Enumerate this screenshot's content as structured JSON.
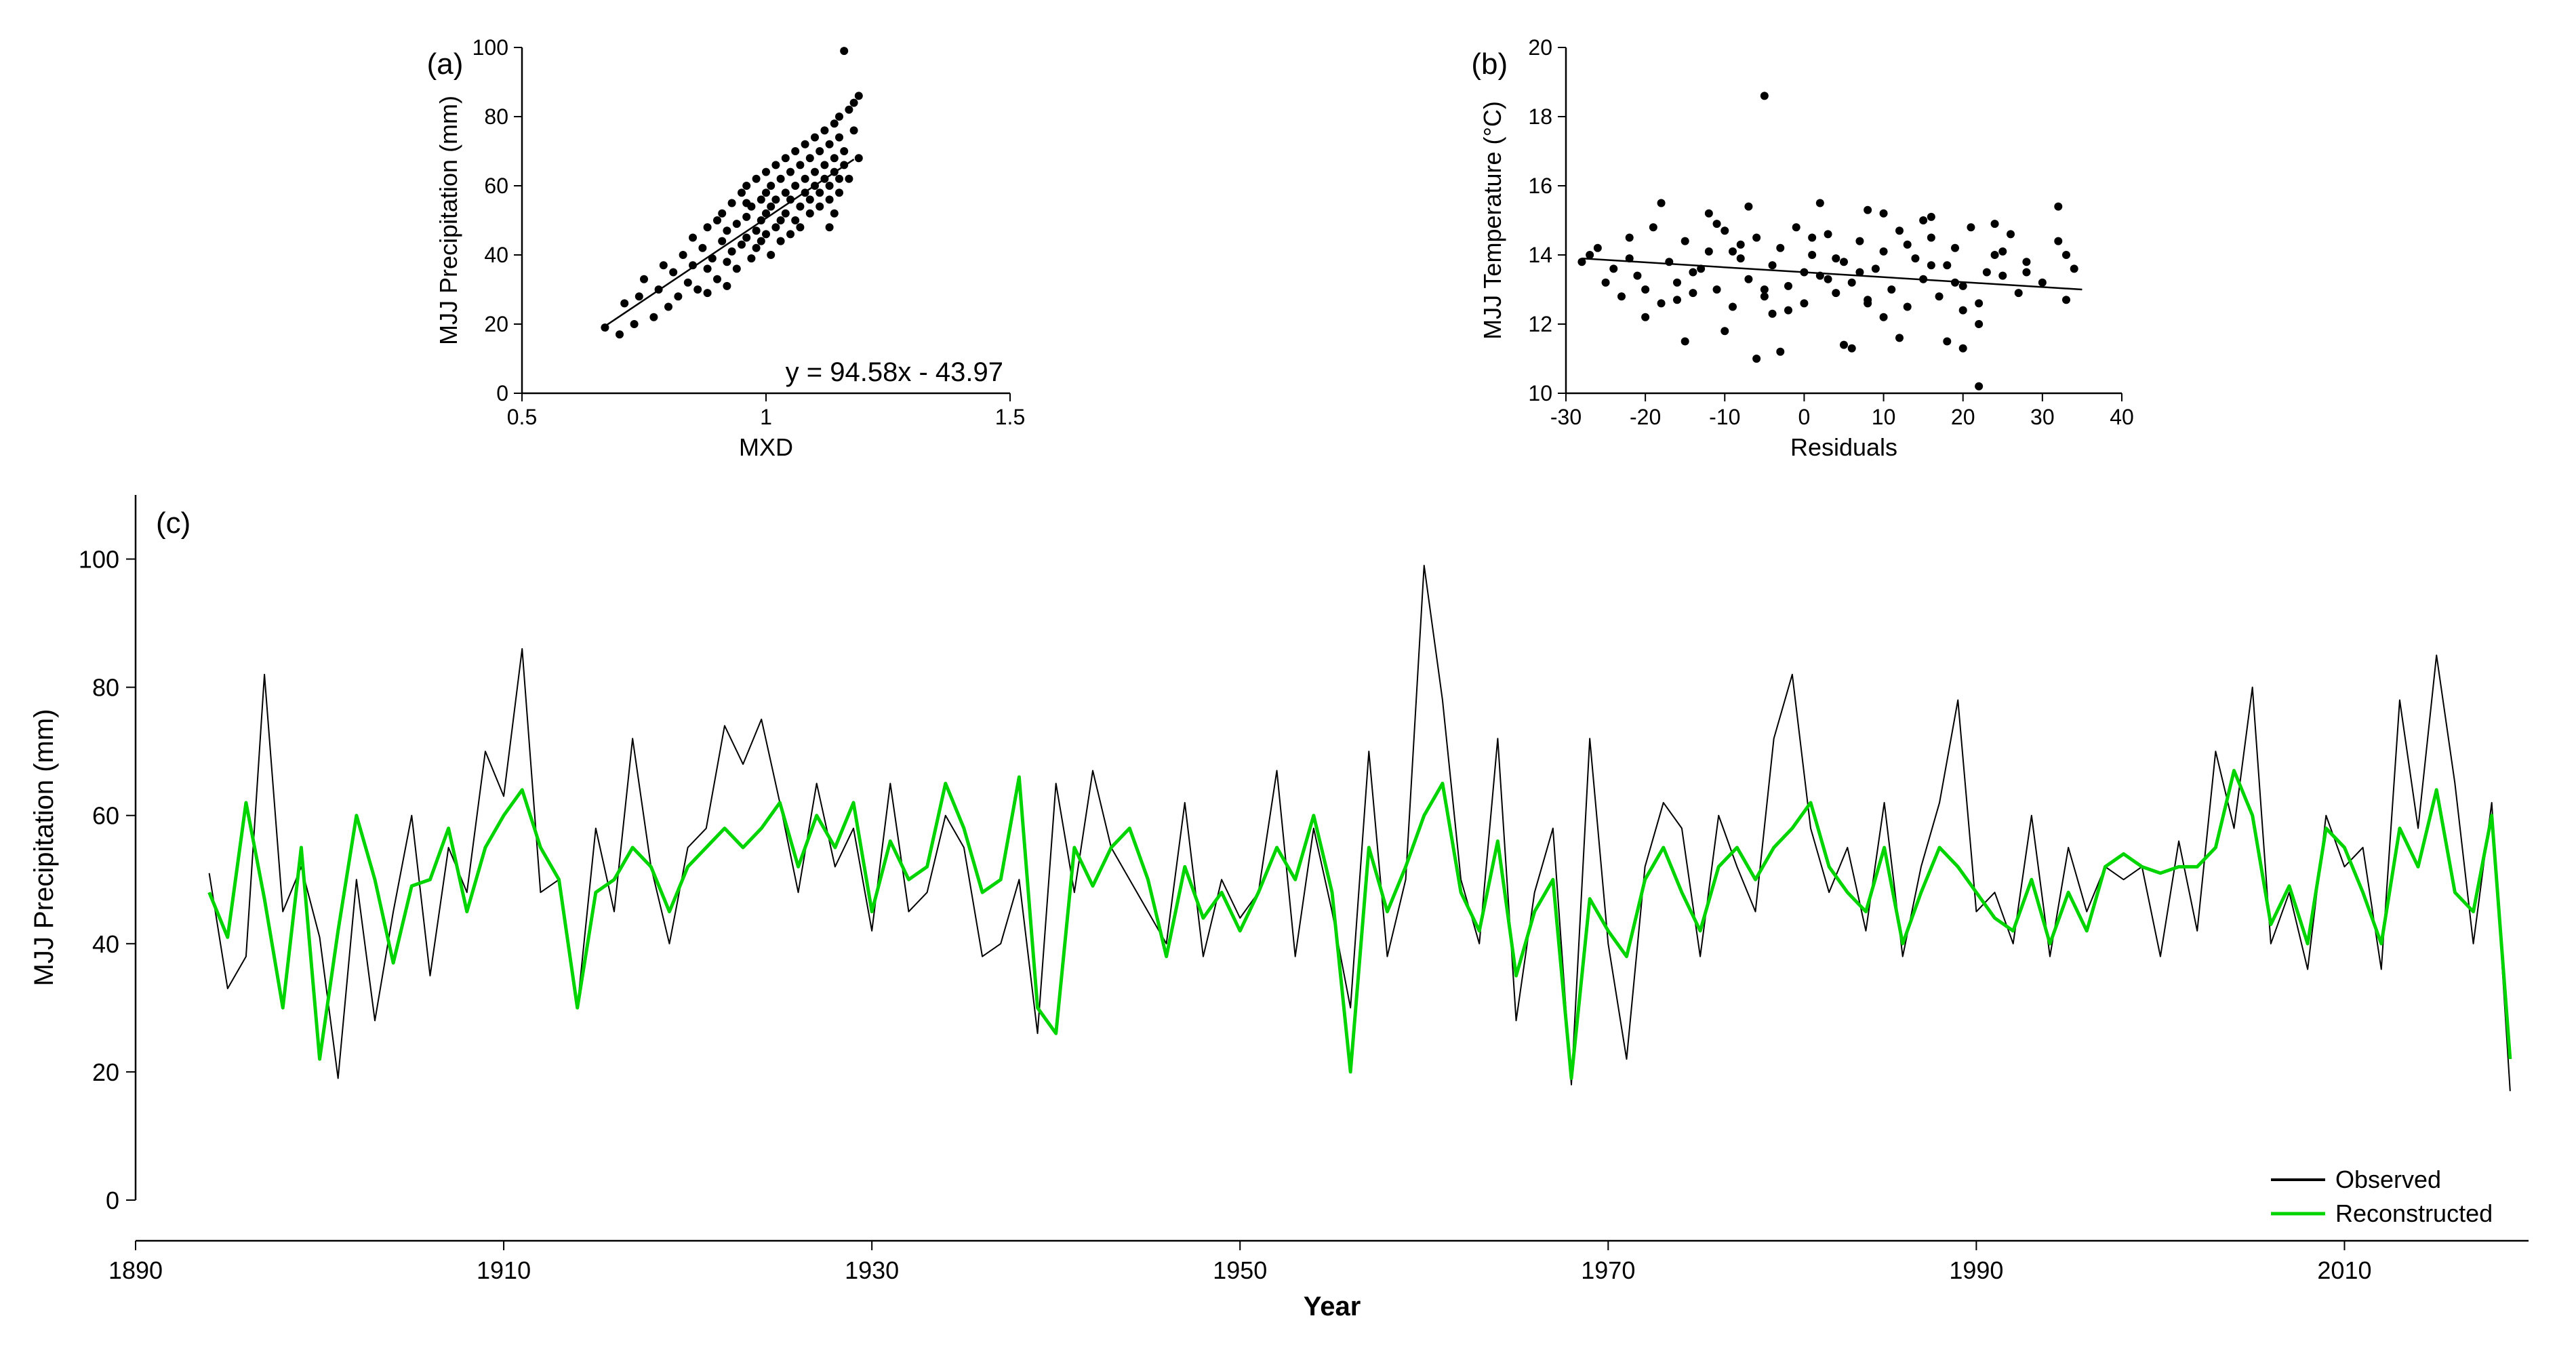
{
  "panelA": {
    "label": "(a)",
    "type": "scatter",
    "xlabel": "MXD",
    "ylabel": "MJJ Precipitation (mm)",
    "xlim": [
      0.5,
      1.5
    ],
    "ylim": [
      0,
      100
    ],
    "xticks": [
      0.5,
      1,
      1.5
    ],
    "yticks": [
      0,
      20,
      40,
      60,
      80,
      100
    ],
    "equation": "y = 94.58x - 43.97",
    "reg_slope": 94.58,
    "reg_intercept": -43.97,
    "reg_x1": 0.67,
    "reg_x2": 1.18,
    "marker_color": "#000000",
    "marker_radius": 6,
    "line_color": "#000000",
    "line_width": 2.5,
    "background_color": "#ffffff",
    "label_fontsize": 36,
    "tick_fontsize": 32,
    "eq_fontsize": 40,
    "points": [
      [
        0.67,
        19
      ],
      [
        0.7,
        17
      ],
      [
        0.71,
        26
      ],
      [
        0.73,
        20
      ],
      [
        0.74,
        28
      ],
      [
        0.75,
        33
      ],
      [
        0.77,
        22
      ],
      [
        0.78,
        30
      ],
      [
        0.79,
        37
      ],
      [
        0.8,
        25
      ],
      [
        0.81,
        35
      ],
      [
        0.82,
        28
      ],
      [
        0.83,
        40
      ],
      [
        0.84,
        32
      ],
      [
        0.85,
        45
      ],
      [
        0.86,
        30
      ],
      [
        0.87,
        42
      ],
      [
        0.88,
        36
      ],
      [
        0.88,
        48
      ],
      [
        0.89,
        39
      ],
      [
        0.9,
        50
      ],
      [
        0.9,
        33
      ],
      [
        0.91,
        44
      ],
      [
        0.91,
        52
      ],
      [
        0.92,
        38
      ],
      [
        0.92,
        47
      ],
      [
        0.93,
        55
      ],
      [
        0.93,
        41
      ],
      [
        0.94,
        49
      ],
      [
        0.94,
        36
      ],
      [
        0.95,
        58
      ],
      [
        0.95,
        43
      ],
      [
        0.96,
        51
      ],
      [
        0.96,
        45
      ],
      [
        0.96,
        60
      ],
      [
        0.97,
        39
      ],
      [
        0.97,
        54
      ],
      [
        0.98,
        47
      ],
      [
        0.98,
        62
      ],
      [
        0.98,
        42
      ],
      [
        0.99,
        56
      ],
      [
        0.99,
        50
      ],
      [
        0.99,
        44
      ],
      [
        1.0,
        64
      ],
      [
        1.0,
        52
      ],
      [
        1.0,
        46
      ],
      [
        1.0,
        58
      ],
      [
        1.01,
        40
      ],
      [
        1.01,
        60
      ],
      [
        1.01,
        54
      ],
      [
        1.02,
        48
      ],
      [
        1.02,
        66
      ],
      [
        1.02,
        56
      ],
      [
        1.03,
        50
      ],
      [
        1.03,
        62
      ],
      [
        1.03,
        44
      ],
      [
        1.04,
        58
      ],
      [
        1.04,
        68
      ],
      [
        1.04,
        52
      ],
      [
        1.05,
        46
      ],
      [
        1.05,
        64
      ],
      [
        1.05,
        56
      ],
      [
        1.06,
        70
      ],
      [
        1.06,
        50
      ],
      [
        1.06,
        60
      ],
      [
        1.07,
        54
      ],
      [
        1.07,
        66
      ],
      [
        1.07,
        48
      ],
      [
        1.08,
        72
      ],
      [
        1.08,
        58
      ],
      [
        1.08,
        62
      ],
      [
        1.09,
        52
      ],
      [
        1.09,
        68
      ],
      [
        1.09,
        56
      ],
      [
        1.1,
        74
      ],
      [
        1.1,
        60
      ],
      [
        1.1,
        64
      ],
      [
        1.11,
        54
      ],
      [
        1.11,
        70
      ],
      [
        1.11,
        58
      ],
      [
        1.12,
        76
      ],
      [
        1.12,
        62
      ],
      [
        1.12,
        66
      ],
      [
        1.13,
        56
      ],
      [
        1.13,
        72
      ],
      [
        1.13,
        60
      ],
      [
        1.14,
        78
      ],
      [
        1.14,
        64
      ],
      [
        1.14,
        68
      ],
      [
        1.15,
        58
      ],
      [
        1.15,
        74
      ],
      [
        1.15,
        80
      ],
      [
        1.16,
        66
      ],
      [
        1.16,
        70
      ],
      [
        1.17,
        82
      ],
      [
        1.17,
        62
      ],
      [
        1.18,
        76
      ],
      [
        1.18,
        84
      ],
      [
        1.19,
        68
      ],
      [
        1.19,
        86
      ],
      [
        1.16,
        99
      ],
      [
        1.15,
        62
      ],
      [
        1.14,
        52
      ],
      [
        1.13,
        48
      ],
      [
        0.85,
        37
      ],
      [
        0.88,
        29
      ],
      [
        0.92,
        31
      ],
      [
        0.96,
        55
      ]
    ]
  },
  "panelB": {
    "label": "(b)",
    "type": "scatter",
    "xlabel": "Residuals",
    "ylabel": "MJJ Temperature (°C)",
    "xlim": [
      -30,
      40
    ],
    "ylim": [
      10,
      20
    ],
    "xticks": [
      -30,
      -20,
      -10,
      0,
      10,
      20,
      30,
      40
    ],
    "yticks": [
      10,
      12,
      14,
      16,
      18,
      20
    ],
    "reg_x1": -28,
    "reg_x2": 35,
    "reg_y1": 13.9,
    "reg_y2": 13.0,
    "marker_color": "#000000",
    "marker_radius": 6,
    "line_color": "#000000",
    "line_width": 2,
    "background_color": "#ffffff",
    "label_fontsize": 36,
    "tick_fontsize": 32,
    "points": [
      [
        -28,
        13.8
      ],
      [
        -26,
        14.2
      ],
      [
        -25,
        13.2
      ],
      [
        -24,
        13.6
      ],
      [
        -23,
        12.8
      ],
      [
        -22,
        14.5
      ],
      [
        -21,
        13.4
      ],
      [
        -20,
        13.0
      ],
      [
        -19,
        14.8
      ],
      [
        -18,
        12.6
      ],
      [
        -17,
        13.8
      ],
      [
        -16,
        13.2
      ],
      [
        -15,
        14.4
      ],
      [
        -14,
        12.9
      ],
      [
        -13,
        13.6
      ],
      [
        -12,
        14.1
      ],
      [
        -11,
        13.0
      ],
      [
        -10,
        14.7
      ],
      [
        -9,
        12.5
      ],
      [
        -8,
        13.9
      ],
      [
        -7,
        13.3
      ],
      [
        -6,
        14.5
      ],
      [
        -5,
        12.8
      ],
      [
        -5,
        18.6
      ],
      [
        -4,
        13.7
      ],
      [
        -3,
        14.2
      ],
      [
        -2,
        13.1
      ],
      [
        -1,
        14.8
      ],
      [
        0,
        12.6
      ],
      [
        0,
        13.5
      ],
      [
        1,
        14.0
      ],
      [
        2,
        13.4
      ],
      [
        3,
        14.6
      ],
      [
        4,
        12.9
      ],
      [
        5,
        13.8
      ],
      [
        6,
        13.2
      ],
      [
        7,
        14.4
      ],
      [
        8,
        12.7
      ],
      [
        9,
        13.6
      ],
      [
        10,
        14.1
      ],
      [
        10,
        15.2
      ],
      [
        11,
        13.0
      ],
      [
        12,
        14.7
      ],
      [
        13,
        12.5
      ],
      [
        14,
        13.9
      ],
      [
        15,
        13.3
      ],
      [
        15,
        15.0
      ],
      [
        16,
        14.5
      ],
      [
        17,
        12.8
      ],
      [
        18,
        13.7
      ],
      [
        19,
        14.2
      ],
      [
        20,
        13.1
      ],
      [
        21,
        14.8
      ],
      [
        22,
        12.6
      ],
      [
        22,
        10.2
      ],
      [
        23,
        13.5
      ],
      [
        24,
        14.0
      ],
      [
        25,
        13.4
      ],
      [
        26,
        14.6
      ],
      [
        27,
        12.9
      ],
      [
        28,
        13.8
      ],
      [
        30,
        13.2
      ],
      [
        32,
        14.4
      ],
      [
        32,
        15.4
      ],
      [
        33,
        12.7
      ],
      [
        34,
        13.6
      ],
      [
        33,
        14.0
      ],
      [
        -27,
        14.0
      ],
      [
        -18,
        15.5
      ],
      [
        -15,
        11.5
      ],
      [
        -12,
        15.2
      ],
      [
        -10,
        11.8
      ],
      [
        -7,
        15.4
      ],
      [
        -3,
        11.2
      ],
      [
        2,
        15.5
      ],
      [
        5,
        11.4
      ],
      [
        8,
        15.3
      ],
      [
        12,
        11.6
      ],
      [
        16,
        15.1
      ],
      [
        20,
        11.3
      ],
      [
        24,
        14.9
      ],
      [
        -14,
        13.5
      ],
      [
        -8,
        14.3
      ],
      [
        -2,
        12.4
      ],
      [
        4,
        13.9
      ],
      [
        10,
        12.2
      ],
      [
        16,
        13.7
      ],
      [
        22,
        12.0
      ],
      [
        28,
        13.5
      ],
      [
        -20,
        12.2
      ],
      [
        -6,
        11.0
      ],
      [
        6,
        11.3
      ],
      [
        18,
        11.5
      ],
      [
        -11,
        14.9
      ],
      [
        1,
        14.5
      ],
      [
        13,
        14.3
      ],
      [
        25,
        14.1
      ],
      [
        -5,
        13.0
      ],
      [
        7,
        13.5
      ],
      [
        19,
        13.2
      ],
      [
        -16,
        12.7
      ],
      [
        -4,
        12.3
      ],
      [
        8,
        12.6
      ],
      [
        20,
        12.4
      ],
      [
        -22,
        13.9
      ],
      [
        -9,
        14.1
      ],
      [
        3,
        13.3
      ]
    ]
  },
  "panelC": {
    "label": "(c)",
    "type": "line",
    "xlabel": "Year",
    "ylabel": "MJJ Precipitation (mm)",
    "xlim": [
      1890,
      2020
    ],
    "ylim": [
      0,
      110
    ],
    "xticks": [
      1890,
      1910,
      1930,
      1950,
      1970,
      1990,
      2010
    ],
    "yticks": [
      0,
      20,
      40,
      60,
      80,
      100
    ],
    "background_color": "#ffffff",
    "label_fontsize": 40,
    "tick_fontsize": 36,
    "legend": [
      {
        "label": "Observed",
        "color": "#000000",
        "width": 2
      },
      {
        "label": "Reconstructed",
        "color": "#00d400",
        "width": 5
      }
    ],
    "years": [
      1894,
      1895,
      1896,
      1897,
      1898,
      1899,
      1900,
      1901,
      1902,
      1903,
      1904,
      1905,
      1906,
      1907,
      1908,
      1909,
      1910,
      1911,
      1912,
      1913,
      1914,
      1915,
      1916,
      1917,
      1918,
      1919,
      1920,
      1921,
      1922,
      1923,
      1924,
      1925,
      1926,
      1927,
      1928,
      1929,
      1930,
      1931,
      1932,
      1933,
      1934,
      1935,
      1936,
      1937,
      1938,
      1939,
      1940,
      1941,
      1942,
      1943,
      1944,
      1945,
      1946,
      1947,
      1948,
      1949,
      1950,
      1951,
      1952,
      1953,
      1954,
      1955,
      1956,
      1957,
      1958,
      1959,
      1960,
      1961,
      1962,
      1963,
      1964,
      1965,
      1966,
      1967,
      1968,
      1969,
      1970,
      1971,
      1972,
      1973,
      1974,
      1975,
      1976,
      1977,
      1978,
      1979,
      1980,
      1981,
      1982,
      1983,
      1984,
      1985,
      1986,
      1987,
      1988,
      1989,
      1990,
      1991,
      1992,
      1993,
      1994,
      1995,
      1996,
      1997,
      1998,
      1999,
      2000,
      2001,
      2002,
      2003,
      2004,
      2005,
      2006,
      2007,
      2008,
      2009,
      2010,
      2011,
      2012,
      2013,
      2014,
      2015,
      2016,
      2017,
      2018,
      2019
    ],
    "observed": [
      51,
      33,
      38,
      82,
      45,
      52,
      41,
      19,
      50,
      28,
      45,
      60,
      35,
      55,
      48,
      70,
      63,
      86,
      48,
      50,
      30,
      58,
      45,
      72,
      52,
      40,
      55,
      58,
      74,
      68,
      75,
      62,
      48,
      65,
      52,
      58,
      42,
      65,
      45,
      48,
      60,
      55,
      38,
      40,
      50,
      26,
      65,
      48,
      67,
      55,
      50,
      45,
      40,
      62,
      38,
      50,
      44,
      48,
      67,
      38,
      58,
      45,
      30,
      70,
      38,
      50,
      99,
      78,
      50,
      40,
      72,
      28,
      48,
      58,
      18,
      72,
      40,
      22,
      52,
      62,
      58,
      38,
      60,
      52,
      45,
      72,
      82,
      58,
      48,
      55,
      42,
      62,
      38,
      52,
      62,
      78,
      45,
      48,
      40,
      60,
      38,
      55,
      45,
      52,
      50,
      52,
      38,
      56,
      42,
      70,
      58,
      80,
      40,
      48,
      36,
      60,
      52,
      55,
      36,
      78,
      58,
      85,
      65,
      40,
      62,
      17
    ],
    "reconstructed": [
      48,
      41,
      62,
      47,
      30,
      55,
      22,
      42,
      60,
      50,
      37,
      49,
      50,
      58,
      45,
      55,
      60,
      64,
      55,
      50,
      30,
      48,
      50,
      55,
      52,
      45,
      52,
      55,
      58,
      55,
      58,
      62,
      52,
      60,
      55,
      62,
      45,
      56,
      50,
      52,
      65,
      58,
      48,
      50,
      66,
      30,
      26,
      55,
      49,
      55,
      58,
      50,
      38,
      52,
      44,
      48,
      42,
      48,
      55,
      50,
      60,
      48,
      20,
      55,
      45,
      52,
      60,
      65,
      48,
      42,
      56,
      35,
      45,
      50,
      19,
      47,
      42,
      38,
      50,
      55,
      48,
      42,
      52,
      55,
      50,
      55,
      58,
      62,
      52,
      48,
      45,
      55,
      40,
      48,
      55,
      52,
      48,
      44,
      42,
      50,
      40,
      48,
      42,
      52,
      54,
      52,
      51,
      52,
      52,
      55,
      67,
      60,
      43,
      49,
      40,
      58,
      55,
      48,
      40,
      58,
      52,
      64,
      48,
      45,
      60,
      22
    ]
  }
}
